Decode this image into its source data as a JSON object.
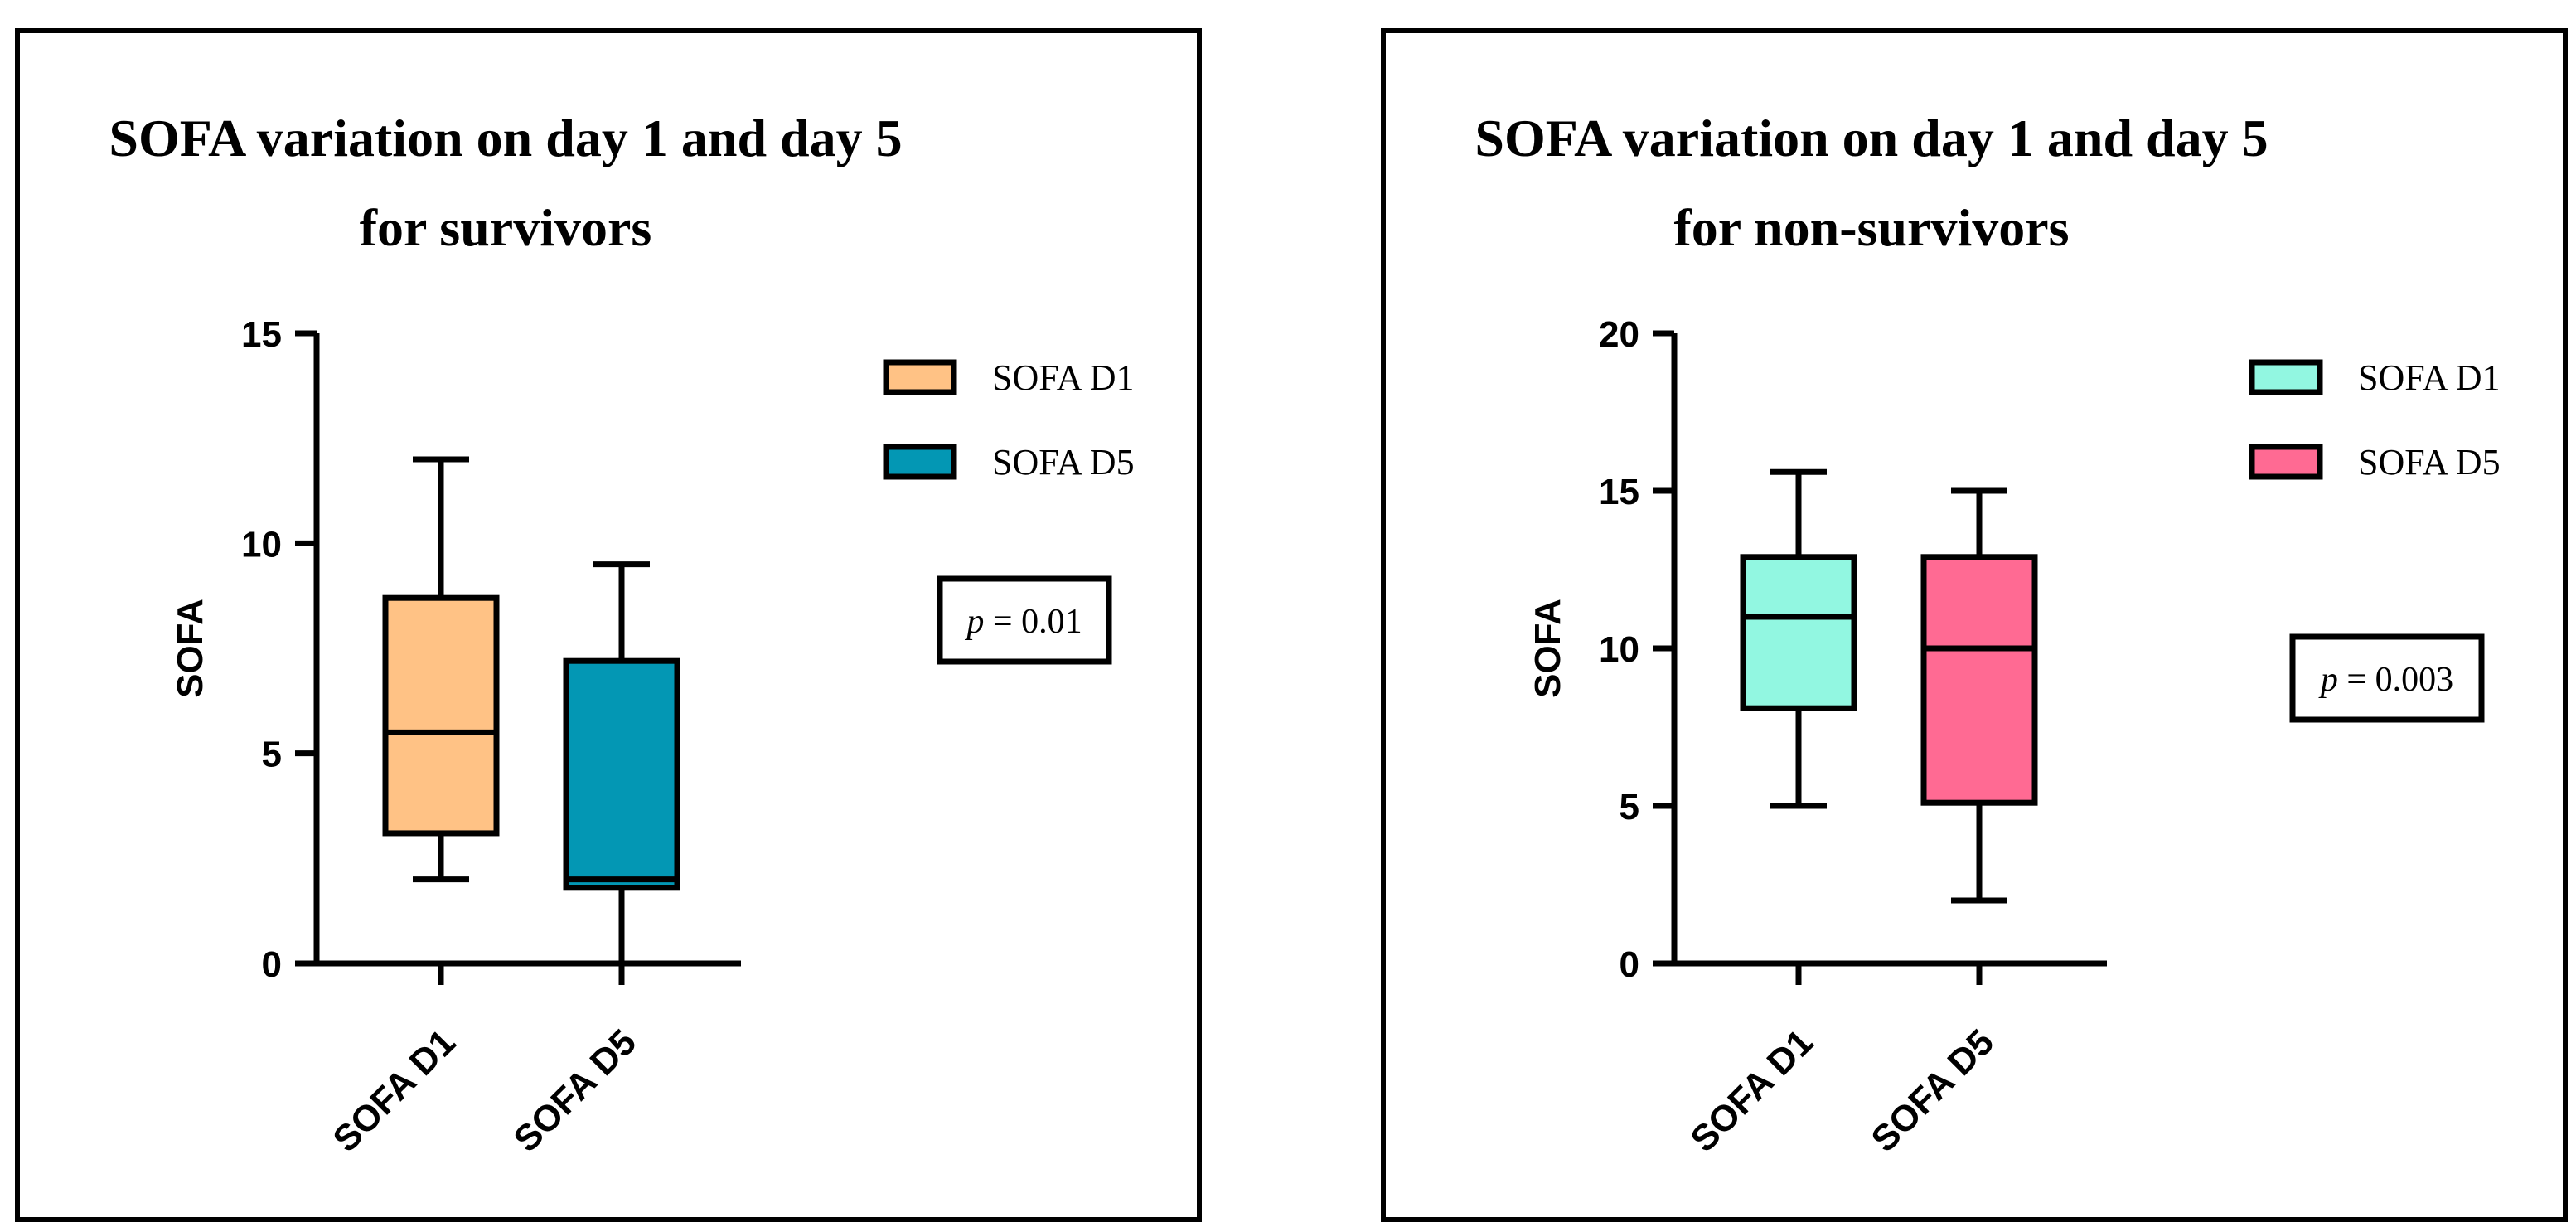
{
  "chart_data": [
    {
      "type": "box",
      "title": [
        "SOFA variation on day 1 and day 5",
        "for survivors"
      ],
      "ylabel": "SOFA",
      "ylim": [
        0,
        15
      ],
      "yticks": [
        0,
        5,
        10,
        15
      ],
      "categories": [
        "SOFA D1",
        "SOFA D5"
      ],
      "boxes": [
        {
          "name": "SOFA D1",
          "min": 2,
          "q1": 3.1,
          "median": 5.5,
          "q3": 8.7,
          "max": 12,
          "color": "#FFC285"
        },
        {
          "name": "SOFA D5",
          "min": 0,
          "q1": 1.8,
          "median": 2.0,
          "q3": 7.2,
          "max": 9.5,
          "color": "#0397B4"
        }
      ],
      "legend": [
        "SOFA D1",
        "SOFA D5"
      ],
      "p_value": {
        "label": "p",
        "value": "= 0.01"
      }
    },
    {
      "type": "box",
      "title": [
        "SOFA variation on day 1 and day 5",
        "for non-survivors"
      ],
      "ylabel": "SOFA",
      "ylim": [
        0,
        20
      ],
      "yticks": [
        0,
        5,
        10,
        15,
        20
      ],
      "categories": [
        "SOFA D1",
        "SOFA D5"
      ],
      "boxes": [
        {
          "name": "SOFA D1",
          "min": 5,
          "q1": 8.1,
          "median": 11,
          "q3": 12.9,
          "max": 15.6,
          "color": "#92F7E1"
        },
        {
          "name": "SOFA D5",
          "min": 2,
          "q1": 5.1,
          "median": 10,
          "q3": 12.9,
          "max": 15,
          "color": "#FF6A93"
        }
      ],
      "legend": [
        "SOFA D1",
        "SOFA D5"
      ],
      "p_value": {
        "label": "p",
        "value": "= 0.003"
      }
    }
  ]
}
